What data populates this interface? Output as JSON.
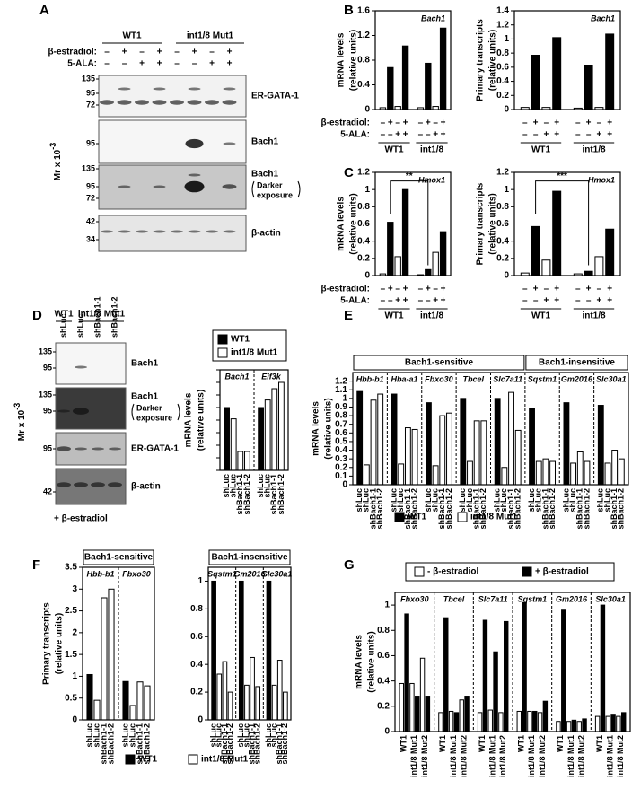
{
  "panels": {
    "A": {
      "letter": "A",
      "groups": [
        "WT1",
        "int1/8 Mut1"
      ],
      "conditions": [
        {
          "label": "β-estradiol:",
          "signs": [
            "–",
            "+",
            "–",
            "+",
            "–",
            "+",
            "–",
            "+"
          ]
        },
        {
          "label": "5-ALA:",
          "signs": [
            "–",
            "–",
            "+",
            "+",
            "–",
            "–",
            "+",
            "+"
          ]
        }
      ],
      "ylabel": {
        "text": "Mr x 10",
        "sup": "-3"
      },
      "blots": [
        {
          "label": "ER-GATA-1",
          "markers": [
            "135",
            "95",
            "72"
          ]
        },
        {
          "label": "Bach1",
          "markers": [
            "95"
          ]
        },
        {
          "label": "Bach1",
          "sublabel": [
            "Darker",
            "exposure"
          ],
          "markers": [
            "135",
            "95",
            "72"
          ]
        },
        {
          "label": "β-actin",
          "markers": [
            "42",
            "34"
          ]
        }
      ]
    },
    "B": {
      "letter": "B",
      "group_names": [
        "WT1",
        "int1/8"
      ],
      "conditions": [
        {
          "label": "β-estradiol:",
          "signs": [
            "–",
            "+",
            "–",
            "+",
            "–",
            "+",
            "–",
            "+"
          ]
        },
        {
          "label": "5-ALA:",
          "signs": [
            "–",
            "–",
            "+",
            "+",
            "–",
            "–",
            "+",
            "+"
          ]
        }
      ],
      "charts": [
        {
          "type": "bar",
          "title": "Bach1",
          "ylabel": [
            "mRNA levels",
            "(relative units)"
          ],
          "ylim": [
            0,
            1.6
          ],
          "yticks": [
            0,
            0.4,
            0.8,
            1.2,
            1.6
          ],
          "colors": [
            "#ffffff",
            "#000000",
            "#ffffff",
            "#000000"
          ],
          "sections": [
            {
              "groups": [
                {
                  "values": [
                    0.03,
                    0.68,
                    0.05,
                    1.03
                  ]
                },
                {
                  "values": [
                    0.03,
                    0.75,
                    0.05,
                    1.32
                  ]
                }
              ]
            }
          ]
        },
        {
          "type": "bar",
          "title": "Bach1",
          "ylabel": [
            "Primary transcripts",
            "(relative units)"
          ],
          "ylim": [
            0,
            1.4
          ],
          "yticks": [
            0,
            0.2,
            0.4,
            0.6,
            0.8,
            1,
            1.2,
            1.4
          ],
          "colors": [
            "#ffffff",
            "#000000",
            "#ffffff",
            "#000000"
          ],
          "sections": [
            {
              "groups": [
                {
                  "values": [
                    0.03,
                    0.77,
                    0.03,
                    1.02
                  ]
                },
                {
                  "values": [
                    0.02,
                    0.63,
                    0.03,
                    1.07
                  ]
                }
              ]
            }
          ]
        }
      ]
    },
    "C": {
      "letter": "C",
      "group_names": [
        "WT1",
        "int1/8"
      ],
      "conditions": [
        {
          "label": "β-estradiol:",
          "signs": [
            "–",
            "+",
            "–",
            "+",
            "–",
            "+",
            "–",
            "+"
          ]
        },
        {
          "label": "5-ALA:",
          "signs": [
            "–",
            "–",
            "+",
            "+",
            "–",
            "–",
            "+",
            "+"
          ]
        }
      ],
      "charts": [
        {
          "type": "bar",
          "title": "Hmox1",
          "annotation": "**",
          "ylabel": [
            "mRNA levels",
            "(relative units)"
          ],
          "ylim": [
            0,
            1.2
          ],
          "yticks": [
            0,
            0.2,
            0.4,
            0.6,
            0.8,
            1,
            1.2
          ],
          "colors": [
            "#ffffff",
            "#000000",
            "#ffffff",
            "#000000"
          ],
          "sections": [
            {
              "groups": [
                {
                  "values": [
                    0.02,
                    0.62,
                    0.22,
                    1.0
                  ]
                },
                {
                  "values": [
                    0.01,
                    0.07,
                    0.27,
                    0.51
                  ]
                }
              ]
            }
          ]
        },
        {
          "type": "bar",
          "title": "Hmox1",
          "annotation": "***",
          "ylabel": [
            "Primary transcripts",
            "(relative units)"
          ],
          "ylim": [
            0,
            1.2
          ],
          "yticks": [
            0,
            0.2,
            0.4,
            0.6,
            0.8,
            1,
            1.2
          ],
          "colors": [
            "#ffffff",
            "#000000",
            "#ffffff",
            "#000000"
          ],
          "sections": [
            {
              "groups": [
                {
                  "values": [
                    0.03,
                    0.57,
                    0.18,
                    0.98
                  ]
                },
                {
                  "values": [
                    0.02,
                    0.05,
                    0.22,
                    0.54
                  ]
                }
              ]
            }
          ]
        }
      ]
    },
    "D": {
      "letter": "D",
      "groups": [
        "WT1",
        "int1/8 Mut1"
      ],
      "lanes": [
        "shLuc",
        "shLuc",
        "shBach1-1",
        "shBach1-2"
      ],
      "ylabel": {
        "text": "Mr x 10",
        "sup": "-3"
      },
      "footer": "+ β-estradiol",
      "blots": [
        {
          "label": "Bach1",
          "markers": [
            "135",
            "95"
          ]
        },
        {
          "label": "Bach1",
          "sublabel": [
            "Darker",
            "exposure"
          ],
          "markers": [
            "135",
            "95"
          ]
        },
        {
          "label": "ER-GATA-1",
          "markers": [
            "95"
          ]
        },
        {
          "label": "β-actin",
          "markers": [
            "42"
          ]
        }
      ],
      "legend": [
        {
          "name": "WT1",
          "color": "#000000"
        },
        {
          "name": "int1/8 Mut1",
          "color": "#ffffff"
        }
      ],
      "chart": {
        "type": "bar",
        "ylabel": [
          "mRNA levels",
          "(relative units)"
        ],
        "ylim": [
          0,
          1.6
        ],
        "yticks": [
          0,
          0.2,
          0.4,
          0.6,
          0.8,
          1,
          1.2,
          1.4,
          1.6
        ],
        "tick_labels": false,
        "colors": [
          "#000000",
          "#ffffff",
          "#ffffff",
          "#ffffff"
        ],
        "dividers": true,
        "bar_labels": [
          "shLuc",
          "shLuc",
          "shBach1-1",
          "shBach1-2"
        ],
        "sections": [
          {
            "groups": [
              {
                "name": "Bach1",
                "values": [
                  1.0,
                  0.82,
                  0.3,
                  0.3
                ]
              },
              {
                "name": "Eif3k",
                "values": [
                  1.0,
                  1.12,
                  1.3,
                  1.4
                ]
              }
            ]
          }
        ]
      }
    },
    "E": {
      "letter": "E",
      "legend": [
        {
          "name": "WT1",
          "color": "#000000"
        },
        {
          "name": "int1/8 Mut1",
          "color": "#ffffff"
        }
      ],
      "chart": {
        "type": "bar",
        "ylabel": [
          "mRNA levels",
          "(relative units)"
        ],
        "ylim": [
          0,
          1.3
        ],
        "yticks": [
          0,
          0.1,
          0.2,
          0.3,
          0.4,
          0.5,
          0.6,
          0.7,
          0.8,
          0.9,
          1,
          1.1,
          1.2
        ],
        "colors": [
          "#000000",
          "#ffffff",
          "#ffffff",
          "#ffffff"
        ],
        "dividers": true,
        "bar_labels": [
          "shLuc",
          "shLuc",
          "shBach1-1",
          "shBach1-2"
        ],
        "sections": [
          {
            "label": "Bach1-sensitive",
            "groups": [
              {
                "name": "Hbb-b1",
                "values": [
                  1.08,
                  0.23,
                  0.98,
                  1.05
                ]
              },
              {
                "name": "Hba-a1",
                "values": [
                  1.05,
                  0.24,
                  0.66,
                  0.64
                ]
              },
              {
                "name": "Fbxo30",
                "values": [
                  0.95,
                  0.22,
                  0.8,
                  0.83
                ]
              },
              {
                "name": "Tbcel",
                "values": [
                  1.0,
                  0.27,
                  0.74,
                  0.74
                ]
              },
              {
                "name": "Slc7a11",
                "values": [
                  1.0,
                  0.2,
                  1.07,
                  0.63
                ]
              }
            ]
          },
          {
            "label": "Bach1-insensitive",
            "groups": [
              {
                "name": "Sqstm1",
                "values": [
                  0.88,
                  0.27,
                  0.3,
                  0.27
                ]
              },
              {
                "name": "Gm2016",
                "values": [
                  0.95,
                  0.25,
                  0.38,
                  0.27
                ]
              },
              {
                "name": "Slc30a1",
                "values": [
                  0.92,
                  0.25,
                  0.4,
                  0.3
                ]
              }
            ]
          }
        ]
      }
    },
    "F": {
      "letter": "F",
      "legend": [
        {
          "name": "WT1",
          "color": "#000000"
        },
        {
          "name": "int1/8 Mut1",
          "color": "#ffffff"
        }
      ],
      "charts": [
        {
          "type": "bar",
          "ylabel": [
            "Primary transcripts",
            "(relative units)"
          ],
          "ylim": [
            0,
            3.5
          ],
          "yticks": [
            0,
            0.5,
            1,
            1.5,
            2,
            2.5,
            3,
            3.5
          ],
          "colors": [
            "#000000",
            "#ffffff",
            "#ffffff",
            "#ffffff"
          ],
          "dividers": true,
          "bar_labels": [
            "shLuc",
            "shLuc",
            "shBach1-1",
            "shBach1-2"
          ],
          "sections": [
            {
              "label": "Bach1-sensitive",
              "groups": [
                {
                  "name": "Hbb-b1",
                  "values": [
                    1.04,
                    0.45,
                    2.8,
                    3.0
                  ]
                },
                {
                  "name": "Fbxo30",
                  "values": [
                    0.88,
                    0.33,
                    0.87,
                    0.78
                  ]
                }
              ]
            }
          ]
        },
        {
          "type": "bar",
          "ylim": [
            0,
            1.1
          ],
          "yticks": [
            0,
            0.2,
            0.4,
            0.6,
            0.8,
            1
          ],
          "colors": [
            "#000000",
            "#ffffff",
            "#ffffff",
            "#ffffff"
          ],
          "dividers": true,
          "bar_labels": [
            "shLuc",
            "shLuc",
            "shBach1-1",
            "shBach1-2"
          ],
          "sections": [
            {
              "label": "Bach1-insensitive",
              "groups": [
                {
                  "name": "Sqstm1",
                  "values": [
                    1.0,
                    0.33,
                    0.42,
                    0.2
                  ]
                },
                {
                  "name": "Gm2016",
                  "values": [
                    1.0,
                    0.25,
                    0.45,
                    0.24
                  ]
                },
                {
                  "name": "Slc30a1",
                  "values": [
                    1.0,
                    0.25,
                    0.43,
                    0.2
                  ]
                }
              ]
            }
          ]
        }
      ]
    },
    "G": {
      "letter": "G",
      "legend": [
        {
          "name": "- β-estradiol",
          "color": "#ffffff"
        },
        {
          "name": "+ β-estradiol",
          "color": "#000000"
        }
      ],
      "chart": {
        "type": "bar",
        "ylabel": [
          "mRNA levels",
          "(relative units)"
        ],
        "ylim": [
          0,
          1.1
        ],
        "yticks": [
          0,
          0.2,
          0.4,
          0.6,
          0.8,
          1
        ],
        "colors": [
          "#ffffff",
          "#000000",
          "#ffffff",
          "#000000",
          "#ffffff",
          "#000000"
        ],
        "dividers": true,
        "bar_labels": [
          "WT1",
          "int1/8 Mut1",
          "int1/8 Mut2"
        ],
        "sections": [
          {
            "groups": [
              {
                "name": "Fbxo30",
                "values": [
                  0.38,
                  0.93,
                  0.38,
                  0.28,
                  0.58,
                  0.28
                ]
              },
              {
                "name": "Tbcel",
                "values": [
                  0.15,
                  0.9,
                  0.16,
                  0.15,
                  0.25,
                  0.28
                ]
              },
              {
                "name": "Slc7a11",
                "values": [
                  0.15,
                  0.88,
                  0.17,
                  0.63,
                  0.15,
                  0.87
                ]
              },
              {
                "name": "Sqstm1",
                "values": [
                  0.16,
                  1.02,
                  0.16,
                  0.16,
                  0.15,
                  0.24
                ]
              },
              {
                "name": "Gm2016",
                "values": [
                  0.08,
                  0.96,
                  0.08,
                  0.09,
                  0.08,
                  0.1
                ]
              },
              {
                "name": "Slc30a1",
                "values": [
                  0.12,
                  1.0,
                  0.12,
                  0.13,
                  0.12,
                  0.15
                ]
              }
            ]
          }
        ]
      }
    }
  }
}
